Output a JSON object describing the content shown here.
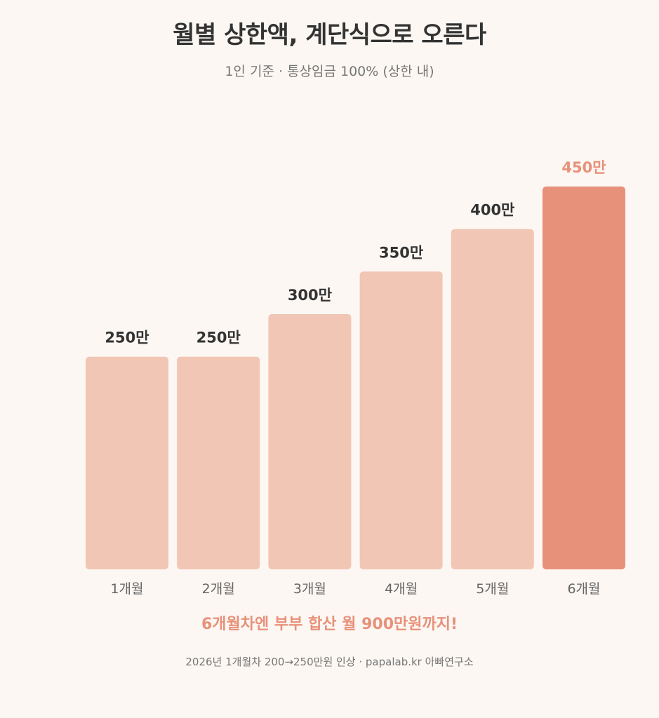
{
  "title": "월별 상한액, 계단식으로 오른다",
  "subtitle": "1인 기준 · 통상임금 100% (상한 내)",
  "highlight_text": "6개월차엔 부부 합산 월 900만원까지!",
  "footer_text": "2026년 1개월차 200→250만원 인상 · papalab.kr 아빠연구소",
  "colors": {
    "background": "#fcf7f3",
    "bar": "#f1c6b4",
    "bar_highlight": "#e8917a",
    "label": "#333333",
    "label_highlight": "#e8917a",
    "tick": "#666666"
  },
  "chart_data": {
    "type": "bar",
    "categories": [
      "1개월",
      "2개월",
      "3개월",
      "4개월",
      "5개월",
      "6개월"
    ],
    "values": [
      250,
      250,
      300,
      350,
      400,
      450
    ],
    "value_labels": [
      "250만",
      "250만",
      "300만",
      "350만",
      "400만",
      "450만"
    ],
    "highlight_index": 5,
    "title": "월별 상한액, 계단식으로 오른다",
    "subtitle": "1인 기준 · 통상임금 100% (상한 내)",
    "xlabel": "",
    "ylabel": "",
    "ylim": [
      0,
      450
    ],
    "grid": false,
    "legend": "none"
  }
}
